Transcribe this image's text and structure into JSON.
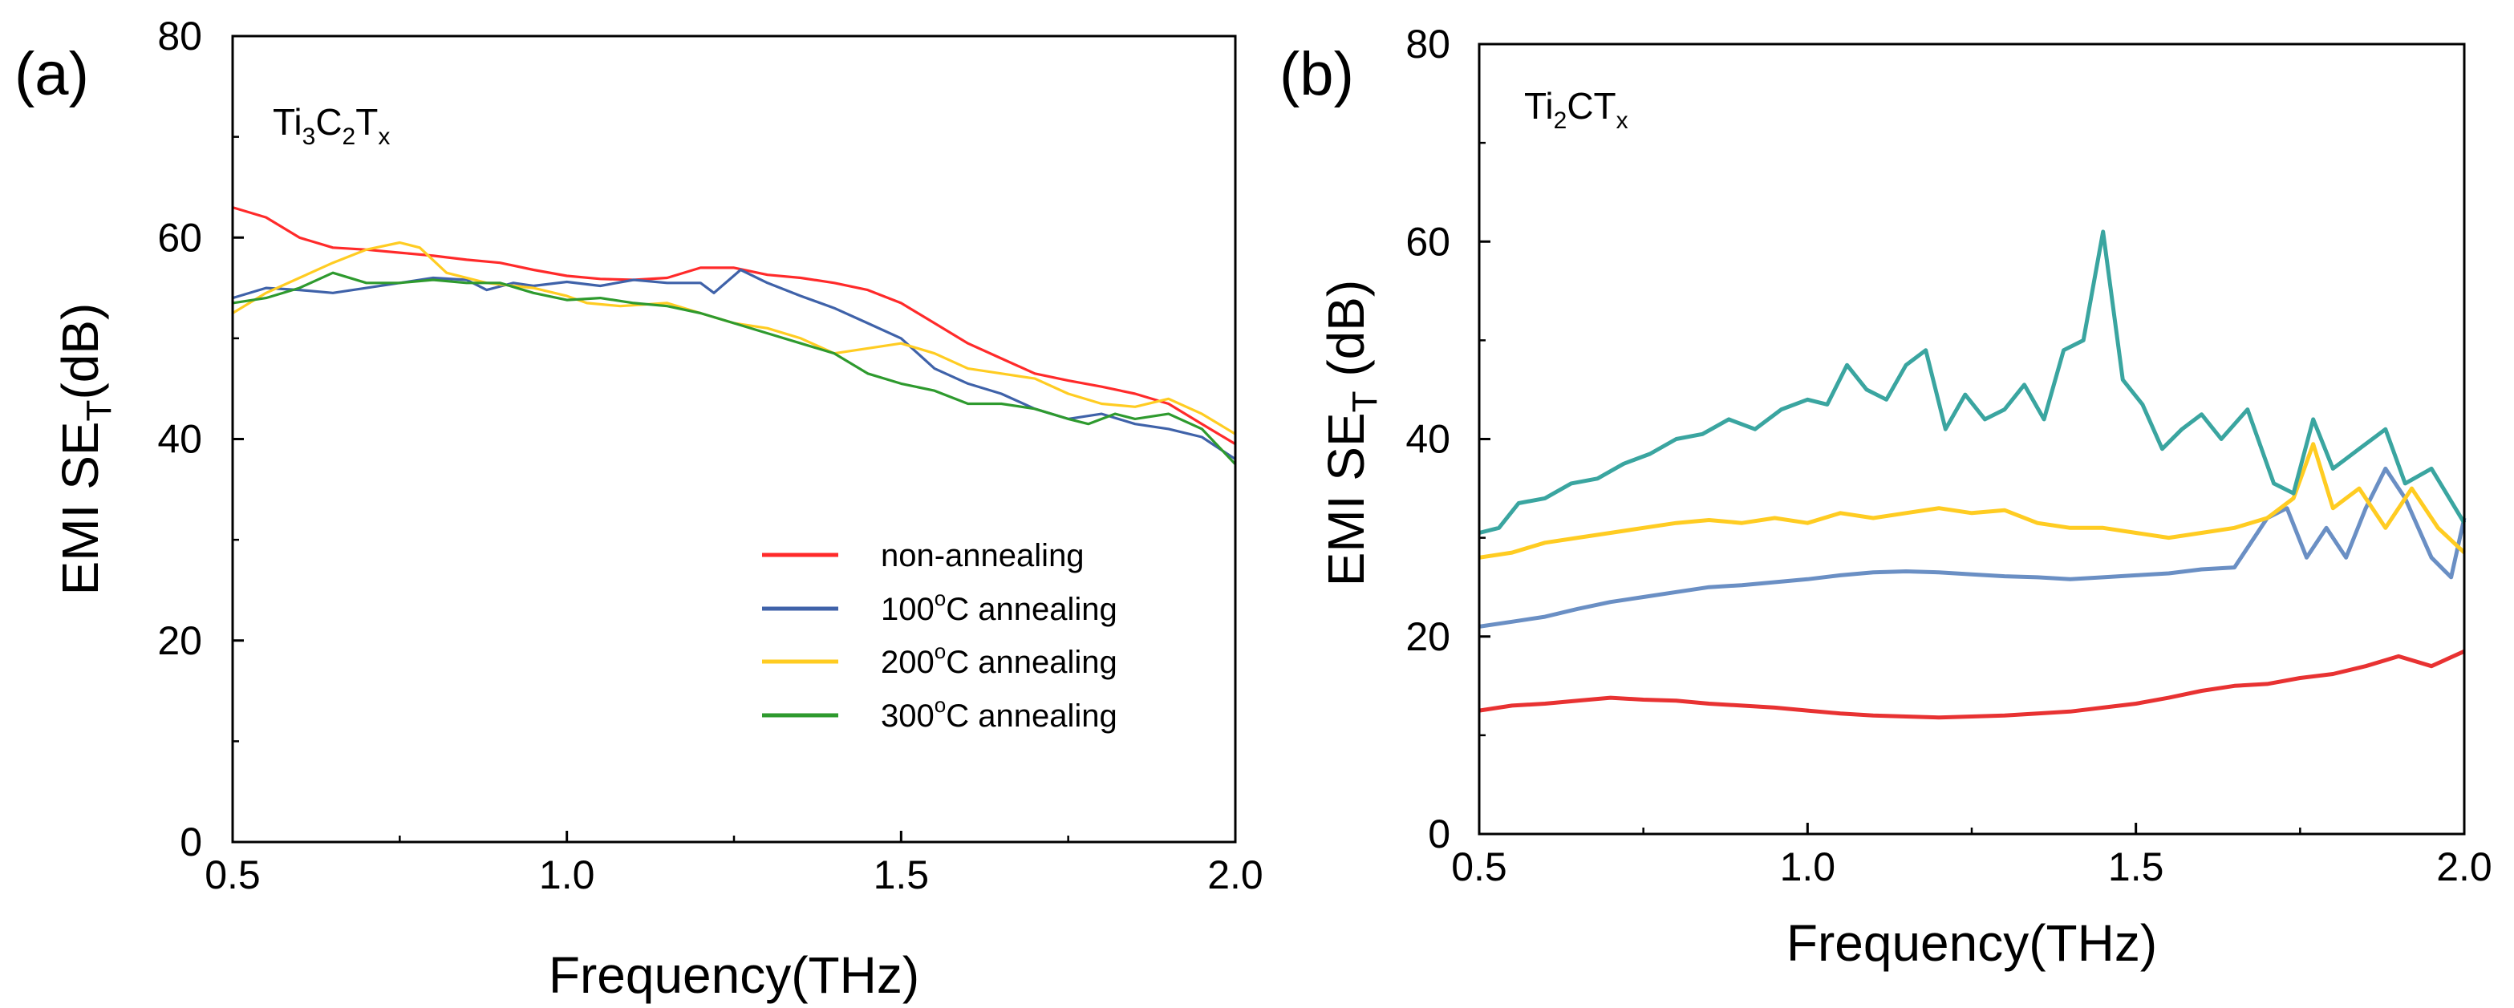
{
  "colors": {
    "red": "#ff2a2a",
    "blue": "#3f62a9",
    "yellow": "#ffcc22",
    "green": "#2e9a2e",
    "teal": "#3aa5a0",
    "steel_blue": "#6a8fc4",
    "dark_red": "#e83232",
    "axis": "#000000"
  },
  "chart_data": [
    {
      "panel": "(a)",
      "type": "line",
      "title": "",
      "material": {
        "base1": "Ti",
        "sub1": "3",
        "base2": "C",
        "sub2": "2",
        "base3": "T",
        "sub3": "x"
      },
      "xlabel": "Frequency(THz)",
      "ylabel": {
        "main": "EMI SE",
        "sub": "T",
        "unit": "(dB)"
      },
      "xlim": [
        0.5,
        2.0
      ],
      "ylim": [
        0,
        80
      ],
      "xticks": [
        "0.5",
        "1.0",
        "1.5",
        "2.0"
      ],
      "yticks": [
        "0",
        "20",
        "40",
        "60",
        "80"
      ],
      "xtick_values": [
        0.5,
        1.0,
        1.5,
        2.0
      ],
      "ytick_values": [
        0,
        20,
        40,
        60,
        80
      ],
      "legend_position": "lower-right",
      "series": [
        {
          "name": "non-annealing",
          "label_pre": "non-annealing",
          "label_temp": "",
          "color": "red",
          "x": [
            0.5,
            0.55,
            0.6,
            0.65,
            0.7,
            0.75,
            0.8,
            0.85,
            0.9,
            0.95,
            1.0,
            1.05,
            1.1,
            1.15,
            1.2,
            1.25,
            1.3,
            1.35,
            1.4,
            1.45,
            1.5,
            1.55,
            1.6,
            1.65,
            1.7,
            1.75,
            1.8,
            1.85,
            1.9,
            1.95,
            2.0
          ],
          "values": [
            63,
            62,
            60,
            59,
            58.8,
            58.5,
            58.2,
            57.8,
            57.5,
            56.8,
            56.2,
            55.9,
            55.8,
            56,
            57,
            57,
            56.3,
            56,
            55.5,
            54.8,
            53.5,
            51.5,
            49.5,
            48,
            46.5,
            45.8,
            45.2,
            44.5,
            43.5,
            41.5,
            39.5
          ]
        },
        {
          "name": "100C annealing",
          "label_pre": "100",
          "label_temp": "o",
          "label_post": "C annealing",
          "color": "blue",
          "x": [
            0.5,
            0.55,
            0.6,
            0.65,
            0.7,
            0.75,
            0.8,
            0.85,
            0.88,
            0.92,
            0.95,
            1.0,
            1.05,
            1.1,
            1.15,
            1.2,
            1.22,
            1.26,
            1.3,
            1.35,
            1.4,
            1.45,
            1.5,
            1.55,
            1.6,
            1.65,
            1.7,
            1.75,
            1.8,
            1.85,
            1.9,
            1.95,
            2.0
          ],
          "values": [
            54,
            55,
            54.8,
            54.5,
            55,
            55.5,
            56,
            55.8,
            54.8,
            55.5,
            55.2,
            55.6,
            55.2,
            55.8,
            55.5,
            55.5,
            54.5,
            56.8,
            55.5,
            54.2,
            53,
            51.5,
            50,
            47,
            45.5,
            44.5,
            43,
            42,
            42.5,
            41.5,
            41,
            40.2,
            38
          ]
        },
        {
          "name": "200C annealing",
          "label_pre": "200",
          "label_temp": "o",
          "label_post": "C annealing",
          "color": "yellow",
          "x": [
            0.5,
            0.55,
            0.6,
            0.65,
            0.7,
            0.75,
            0.78,
            0.82,
            0.88,
            0.95,
            1.0,
            1.03,
            1.08,
            1.15,
            1.2,
            1.25,
            1.3,
            1.35,
            1.4,
            1.45,
            1.5,
            1.55,
            1.6,
            1.65,
            1.7,
            1.75,
            1.8,
            1.85,
            1.9,
            1.95,
            2.0
          ],
          "values": [
            52.5,
            54.5,
            56,
            57.5,
            58.8,
            59.5,
            59,
            56.5,
            55.5,
            55,
            54.2,
            53.5,
            53.2,
            53.5,
            52.5,
            51.5,
            51,
            50,
            48.5,
            49,
            49.5,
            48.5,
            47,
            46.5,
            46,
            44.5,
            43.5,
            43.2,
            44,
            42.5,
            40.5
          ]
        },
        {
          "name": "300C annealing",
          "label_pre": "300",
          "label_temp": "o",
          "label_post": "C annealing",
          "color": "green",
          "x": [
            0.5,
            0.55,
            0.6,
            0.65,
            0.7,
            0.75,
            0.8,
            0.85,
            0.9,
            0.95,
            1.0,
            1.05,
            1.1,
            1.15,
            1.2,
            1.25,
            1.3,
            1.35,
            1.4,
            1.45,
            1.5,
            1.55,
            1.6,
            1.65,
            1.7,
            1.75,
            1.78,
            1.82,
            1.85,
            1.9,
            1.95,
            2.0
          ],
          "values": [
            53.5,
            54,
            55,
            56.5,
            55.5,
            55.5,
            55.8,
            55.5,
            55.5,
            54.5,
            53.8,
            54,
            53.5,
            53.2,
            52.5,
            51.5,
            50.5,
            49.5,
            48.5,
            46.5,
            45.5,
            44.8,
            43.5,
            43.5,
            43,
            42,
            41.5,
            42.5,
            42,
            42.5,
            41,
            37.5
          ]
        }
      ]
    },
    {
      "panel": "(b)",
      "type": "line",
      "title": "",
      "material": {
        "base1": "Ti",
        "sub1": "2",
        "base2": "CT",
        "sub2": "x",
        "base3": "",
        "sub3": ""
      },
      "xlabel": "Frequency(THz)",
      "ylabel": {
        "main": "EMI SE",
        "sub": "T",
        "unit": " (dB)"
      },
      "xlim": [
        0.5,
        2.0
      ],
      "ylim": [
        0,
        80
      ],
      "xticks": [
        "0.5",
        "1.0",
        "1.5",
        "2.0"
      ],
      "yticks": [
        "0",
        "20",
        "40",
        "60",
        "80"
      ],
      "xtick_values": [
        0.5,
        1.0,
        1.5,
        2.0
      ],
      "ytick_values": [
        0,
        20,
        40,
        60,
        80
      ],
      "legend_position": "none",
      "series": [
        {
          "name": "non-annealing",
          "color": "dark_red",
          "x": [
            0.5,
            0.55,
            0.6,
            0.65,
            0.7,
            0.75,
            0.8,
            0.85,
            0.9,
            0.95,
            1.0,
            1.05,
            1.1,
            1.15,
            1.2,
            1.25,
            1.3,
            1.35,
            1.4,
            1.45,
            1.5,
            1.55,
            1.6,
            1.65,
            1.7,
            1.75,
            1.8,
            1.85,
            1.9,
            1.95,
            2.0
          ],
          "values": [
            12.5,
            13,
            13.2,
            13.5,
            13.8,
            13.6,
            13.5,
            13.2,
            13,
            12.8,
            12.5,
            12.2,
            12,
            11.9,
            11.8,
            11.9,
            12,
            12.2,
            12.4,
            12.8,
            13.2,
            13.8,
            14.5,
            15,
            15.2,
            15.8,
            16.2,
            17,
            18,
            17,
            18.5
          ]
        },
        {
          "name": "100C annealing",
          "color": "steel_blue",
          "x": [
            0.5,
            0.55,
            0.6,
            0.65,
            0.7,
            0.75,
            0.8,
            0.85,
            0.9,
            0.95,
            1.0,
            1.05,
            1.1,
            1.15,
            1.2,
            1.25,
            1.3,
            1.35,
            1.4,
            1.45,
            1.5,
            1.55,
            1.6,
            1.65,
            1.7,
            1.73,
            1.76,
            1.79,
            1.82,
            1.85,
            1.88,
            1.91,
            1.95,
            1.98,
            2.0
          ],
          "values": [
            21,
            21.5,
            22,
            22.8,
            23.5,
            24,
            24.5,
            25,
            25.2,
            25.5,
            25.8,
            26.2,
            26.5,
            26.6,
            26.5,
            26.3,
            26.1,
            26,
            25.8,
            26,
            26.2,
            26.4,
            26.8,
            27,
            32,
            33,
            28,
            31,
            28,
            33,
            37,
            34,
            28,
            26,
            32
          ]
        },
        {
          "name": "200C annealing",
          "color": "yellow",
          "x": [
            0.5,
            0.55,
            0.6,
            0.65,
            0.7,
            0.75,
            0.8,
            0.85,
            0.9,
            0.95,
            1.0,
            1.05,
            1.1,
            1.15,
            1.2,
            1.25,
            1.3,
            1.35,
            1.4,
            1.45,
            1.5,
            1.55,
            1.6,
            1.65,
            1.7,
            1.74,
            1.77,
            1.8,
            1.84,
            1.88,
            1.92,
            1.96,
            2.0
          ],
          "values": [
            28,
            28.5,
            29.5,
            30,
            30.5,
            31,
            31.5,
            31.8,
            31.5,
            32,
            31.5,
            32.5,
            32,
            32.5,
            33,
            32.5,
            32.8,
            31.5,
            31,
            31,
            30.5,
            30,
            30.5,
            31,
            32,
            34,
            39.5,
            33,
            35,
            31,
            35,
            31,
            28.5
          ]
        },
        {
          "name": "300C annealing",
          "color": "teal",
          "x": [
            0.5,
            0.53,
            0.56,
            0.6,
            0.64,
            0.68,
            0.72,
            0.76,
            0.8,
            0.84,
            0.88,
            0.92,
            0.96,
            1.0,
            1.03,
            1.06,
            1.09,
            1.12,
            1.15,
            1.18,
            1.21,
            1.24,
            1.27,
            1.3,
            1.33,
            1.36,
            1.39,
            1.42,
            1.45,
            1.48,
            1.51,
            1.54,
            1.57,
            1.6,
            1.63,
            1.67,
            1.71,
            1.74,
            1.77,
            1.8,
            1.84,
            1.88,
            1.91,
            1.95,
            2.0
          ],
          "values": [
            30.5,
            31,
            33.5,
            34,
            35.5,
            36,
            37.5,
            38.5,
            40,
            40.5,
            42,
            41,
            43,
            44,
            43.5,
            47.5,
            45,
            44,
            47.5,
            49,
            41,
            44.5,
            42,
            43,
            45.5,
            42,
            49,
            50,
            61,
            46,
            43.5,
            39,
            41,
            42.5,
            40,
            43,
            35.5,
            34.5,
            42,
            37,
            39,
            41,
            35.5,
            37,
            31.5
          ]
        }
      ]
    }
  ]
}
